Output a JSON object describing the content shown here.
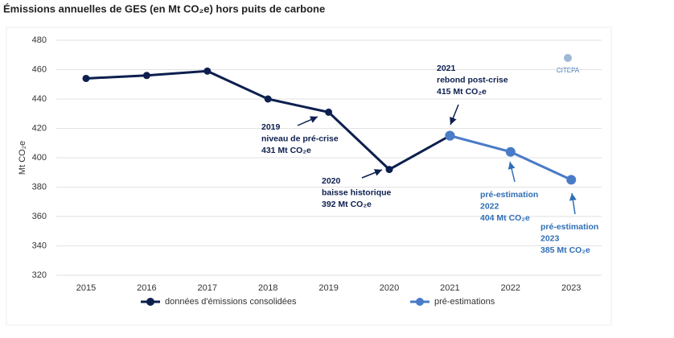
{
  "chart_data": {
    "type": "line",
    "title": "Émissions annuelles de GES (en Mt CO₂e) hors puits de carbone",
    "y_label": "Mt CO₂e",
    "logo": "CITEPA",
    "categories": [
      "2015",
      "2016",
      "2017",
      "2018",
      "2019",
      "2020",
      "2021",
      "2022",
      "2023"
    ],
    "series": [
      {
        "name": "données d'émissions consolidées",
        "color": "#0d1f4f",
        "values": [
          454,
          456,
          459,
          440,
          431,
          392,
          415,
          null,
          null
        ]
      },
      {
        "name": "pré-estimations",
        "color": "#4a7bc8",
        "values": [
          null,
          null,
          null,
          null,
          null,
          null,
          415,
          404,
          385
        ]
      }
    ],
    "ylim": [
      320,
      480
    ],
    "yticks": [
      320,
      340,
      360,
      380,
      400,
      420,
      440,
      460,
      480
    ],
    "grid": true,
    "annotations": [
      {
        "lines": [
          "2019",
          "niveau de pré-crise",
          "431 Mt CO₂e"
        ],
        "color": "#0d1f4f"
      },
      {
        "lines": [
          "2020",
          "baisse historique",
          "392 Mt CO₂e"
        ],
        "color": "#0d1f4f"
      },
      {
        "lines": [
          "2021",
          "rebond post-crise",
          "415 Mt CO₂e"
        ],
        "color": "#0d1f4f"
      },
      {
        "lines": [
          "pré-estimation",
          "2022",
          "404 Mt CO₂e"
        ],
        "color": "#2f6fb5"
      },
      {
        "lines": [
          "pré-estimation",
          "2023",
          "385 Mt CO₂e"
        ],
        "color": "#2f6fb5"
      }
    ]
  }
}
